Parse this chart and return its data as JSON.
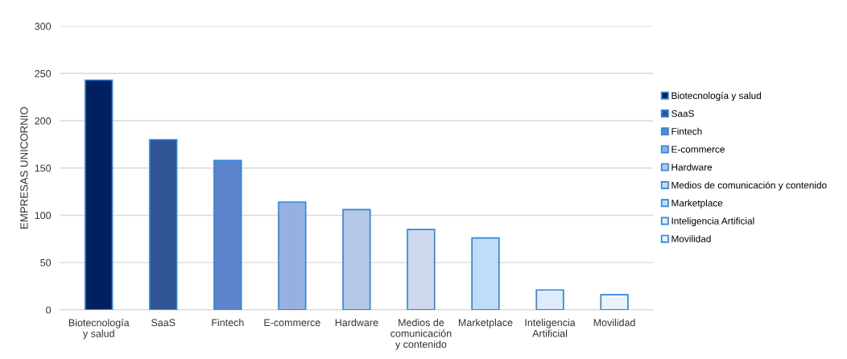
{
  "chart_data": {
    "type": "bar",
    "ylabel": "EMPRESAS UNICORNIO",
    "categories": [
      "Biotecnología\ny salud",
      "SaaS",
      "Fintech",
      "E-commerce",
      "Hardware",
      "Medios de\ncomunicación\ny contenido",
      "Marketplace",
      "Inteligencia\nArtificial",
      "Movilidad"
    ],
    "series": [
      {
        "name": "Biotecnología y salud",
        "color": "#002060",
        "values": [
          243,
          null,
          null,
          null,
          null,
          null,
          null,
          null,
          null
        ]
      },
      {
        "name": "SaaS",
        "color": "#2f5597",
        "values": [
          null,
          180,
          null,
          null,
          null,
          null,
          null,
          null,
          null
        ]
      },
      {
        "name": "Fintech",
        "color": "#5b84cc",
        "values": [
          null,
          null,
          158,
          null,
          null,
          null,
          null,
          null,
          null
        ]
      },
      {
        "name": "E-commerce",
        "color": "#97b0df",
        "values": [
          null,
          null,
          null,
          114,
          null,
          null,
          null,
          null,
          null
        ]
      },
      {
        "name": "Hardware",
        "color": "#b4c7e7",
        "values": [
          null,
          null,
          null,
          null,
          106,
          null,
          null,
          null,
          null
        ]
      },
      {
        "name": "Medios de comunicación y contenido",
        "color": "#cdd8ee",
        "values": [
          null,
          null,
          null,
          null,
          null,
          85,
          null,
          null,
          null
        ]
      },
      {
        "name": "Marketplace",
        "color": "#c0dcf8",
        "values": [
          null,
          null,
          null,
          null,
          null,
          null,
          76,
          null,
          null
        ]
      },
      {
        "name": "Inteligencia Artificial",
        "color": "#deebfa",
        "values": [
          null,
          null,
          null,
          null,
          null,
          null,
          null,
          21,
          null
        ]
      },
      {
        "name": "Movilidad",
        "color": "#eaf2fc",
        "values": [
          null,
          null,
          null,
          null,
          null,
          null,
          null,
          null,
          16
        ]
      }
    ],
    "ylim": [
      0,
      300
    ],
    "yticks": [
      0,
      50,
      100,
      150,
      200,
      250,
      300
    ],
    "grid": "y",
    "legend": "right"
  }
}
